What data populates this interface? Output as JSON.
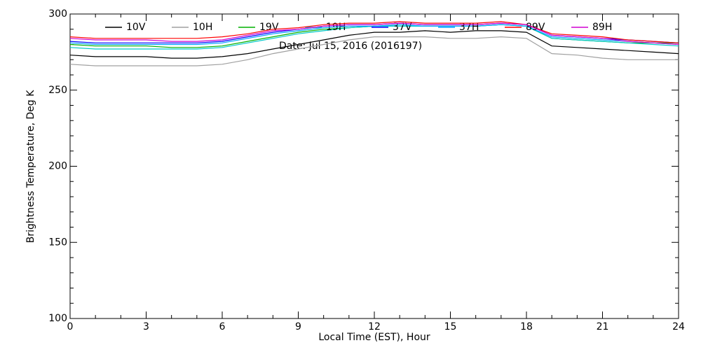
{
  "chart_data": {
    "type": "line",
    "xlabel": "Local Time (EST), Hour",
    "ylabel": "Brightness Temperature, Deg K",
    "annotation": "Date: Jul 15, 2016 (2016197)",
    "x": [
      0,
      1,
      2,
      3,
      4,
      5,
      6,
      7,
      8,
      9,
      10,
      11,
      12,
      13,
      14,
      15,
      16,
      17,
      18,
      19,
      20,
      21,
      22,
      23,
      24
    ],
    "xlim": [
      0,
      24
    ],
    "xticks": [
      0,
      3,
      6,
      9,
      12,
      15,
      18,
      21,
      24
    ],
    "ylim": [
      100,
      300
    ],
    "yticks": [
      100,
      150,
      200,
      250,
      300
    ],
    "series": [
      {
        "name": "10V",
        "color": "#000000",
        "values": [
          273,
          272,
          272,
          272,
          271,
          271,
          272,
          274,
          277,
          280,
          283,
          286,
          288,
          288,
          289,
          288,
          289,
          289,
          288,
          279,
          278,
          277,
          276,
          275,
          274
        ]
      },
      {
        "name": "10H",
        "color": "#a0a0a0",
        "values": [
          267,
          266,
          266,
          266,
          266,
          266,
          267,
          270,
          274,
          277,
          280,
          283,
          285,
          285,
          285,
          284,
          284,
          285,
          284,
          274,
          273,
          271,
          270,
          270,
          270
        ]
      },
      {
        "name": "19V",
        "color": "#00b000",
        "values": [
          280,
          279,
          279,
          279,
          278,
          278,
          279,
          282,
          285,
          288,
          290,
          291,
          292,
          292,
          292,
          292,
          292,
          293,
          292,
          284,
          283,
          282,
          281,
          281,
          281
        ]
      },
      {
        "name": "19H",
        "color": "#00c8c8",
        "values": [
          278,
          277,
          277,
          277,
          277,
          277,
          278,
          281,
          284,
          287,
          289,
          291,
          292,
          292,
          292,
          292,
          292,
          293,
          292,
          284,
          283,
          282,
          281,
          280,
          279
        ]
      },
      {
        "name": "37V",
        "color": "#0000ff",
        "values": [
          282,
          281,
          281,
          281,
          281,
          281,
          282,
          285,
          288,
          290,
          292,
          293,
          293,
          294,
          293,
          293,
          293,
          294,
          293,
          286,
          285,
          284,
          283,
          282,
          281
        ]
      },
      {
        "name": "37H",
        "color": "#00a0ff",
        "values": [
          281,
          280,
          280,
          280,
          280,
          280,
          281,
          284,
          287,
          289,
          291,
          292,
          292,
          293,
          292,
          292,
          292,
          293,
          292,
          285,
          284,
          283,
          282,
          281,
          280
        ]
      },
      {
        "name": "89V",
        "color": "#ff0000",
        "values": [
          285,
          284,
          284,
          284,
          284,
          284,
          285,
          287,
          290,
          291,
          293,
          294,
          294,
          295,
          294,
          294,
          294,
          295,
          293,
          287,
          286,
          285,
          283,
          282,
          281
        ]
      },
      {
        "name": "89H",
        "color": "#d000d0",
        "values": [
          284,
          283,
          283,
          283,
          282,
          282,
          283,
          286,
          289,
          290,
          292,
          293,
          293,
          294,
          293,
          293,
          293,
          294,
          293,
          286,
          285,
          284,
          282,
          281,
          280
        ]
      }
    ]
  }
}
